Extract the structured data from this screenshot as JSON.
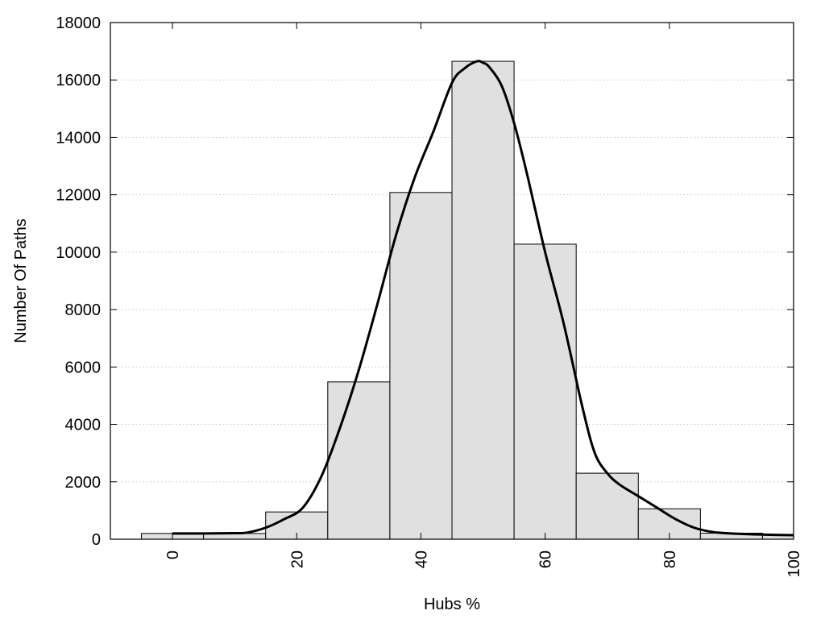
{
  "chart_data": {
    "type": "bar",
    "title": "",
    "xlabel": "Hubs %",
    "ylabel": "Number Of Paths",
    "xlim": [
      -10,
      100
    ],
    "ylim": [
      0,
      18000
    ],
    "x_ticks": [
      0,
      20,
      40,
      60,
      80,
      100
    ],
    "y_ticks": [
      0,
      2000,
      4000,
      6000,
      8000,
      10000,
      12000,
      14000,
      16000,
      18000
    ],
    "grid": "horizontal dotted",
    "legend": "none",
    "bin_width": 10,
    "bins": [
      {
        "center": 0,
        "value": 200
      },
      {
        "center": 10,
        "value": 200
      },
      {
        "center": 20,
        "value": 950
      },
      {
        "center": 30,
        "value": 5480
      },
      {
        "center": 40,
        "value": 12080
      },
      {
        "center": 50,
        "value": 16650
      },
      {
        "center": 60,
        "value": 10280
      },
      {
        "center": 70,
        "value": 2300
      },
      {
        "center": 80,
        "value": 1060
      },
      {
        "center": 90,
        "value": 210
      },
      {
        "center": 100,
        "value": 150
      }
    ],
    "density_curve": {
      "x": [
        0,
        5,
        10,
        12,
        15,
        18,
        21,
        24,
        27,
        30,
        33,
        36,
        39,
        42,
        45,
        47,
        49,
        50,
        51,
        53,
        55,
        57,
        60,
        63,
        66,
        68,
        70,
        72,
        75,
        78,
        81,
        84,
        87,
        90,
        95,
        100
      ],
      "y": [
        200,
        200,
        210,
        230,
        400,
        700,
        1100,
        2200,
        3900,
        5900,
        8200,
        10600,
        12600,
        14200,
        15900,
        16400,
        16650,
        16600,
        16450,
        15800,
        14500,
        12800,
        10000,
        7500,
        4600,
        3000,
        2300,
        1900,
        1500,
        1100,
        700,
        400,
        250,
        200,
        160,
        140
      ]
    },
    "colors": {
      "bar_fill": "#e0e0e0",
      "bar_stroke": "#000000",
      "curve": "#000000",
      "grid": "#c8c8c8"
    }
  }
}
